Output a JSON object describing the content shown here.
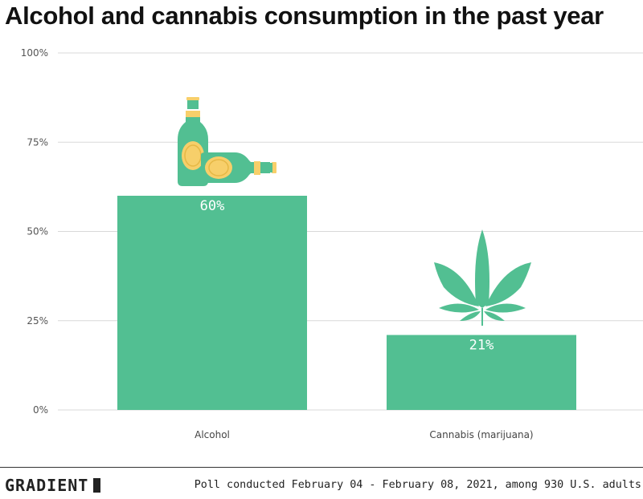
{
  "chart_data": {
    "type": "bar",
    "title": "Alcohol and cannabis consumption in the past year",
    "categories": [
      "Alcohol",
      "Cannabis (marijuana)"
    ],
    "values": [
      60,
      21
    ],
    "data_labels": [
      "60%",
      "21%"
    ],
    "ylim": [
      0,
      100
    ],
    "yticks": [
      "0%",
      "25%",
      "50%",
      "75%",
      "100%"
    ],
    "ytick_values": [
      0,
      25,
      50,
      75,
      100
    ],
    "grid": true,
    "bar_color": "#52bf92",
    "icons": [
      "beer-bottles-icon",
      "cannabis-leaf-icon"
    ]
  },
  "footer": {
    "brand": "GRADIENT",
    "source": "Poll conducted February 04 - February 08, 2021, among 930 U.S. adults"
  },
  "colors": {
    "bar": "#52bf92",
    "icon_accent": "#f7cf6a",
    "grid": "#d9d9d9"
  }
}
